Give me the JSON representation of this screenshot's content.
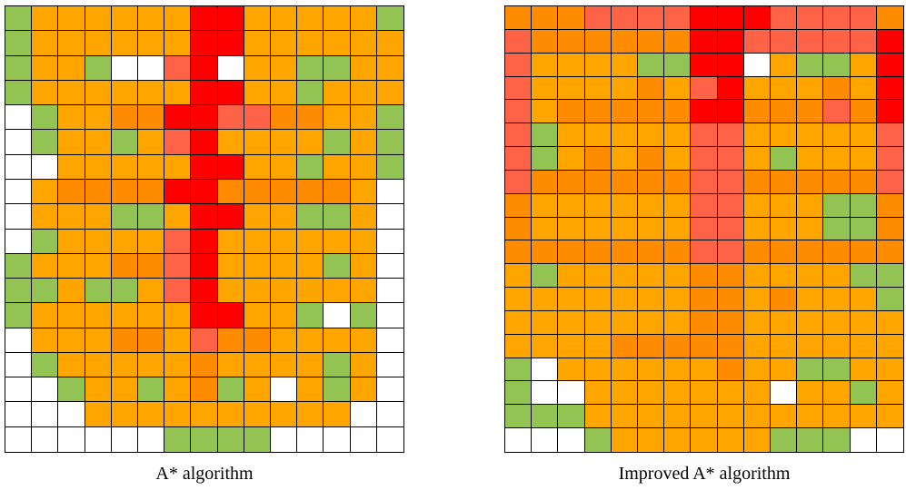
{
  "colors": {
    "W": "#FFFFFF",
    "G": "#92C353",
    "O": "#FFA500",
    "D": "#FF8C00",
    "S": "#FF6347",
    "R": "#FF0000"
  },
  "legend_codes": {
    "W": "white",
    "G": "green",
    "O": "orange",
    "D": "dark-orange",
    "S": "salmon-red",
    "R": "red"
  },
  "panels": [
    {
      "caption": "A* algorithm",
      "rows": [
        "GOOOOOORROOOOOG",
        "GOOOOOORROOOOOO",
        "GOOGWWSRWOOGGOO",
        "GOOOOOORROOGOOO",
        "WGOODDRRSSDDOOG",
        "WGOOGOSROOOOGOG",
        "WWOOOOORROOGOOG",
        "WODDDDRRDDDDDOW",
        "WOOOGGORROOGGOW",
        "WGOOOOSROOOOOOW",
        "GOOODDSROOOOGOW",
        "GGOGGOSROOOOOOW",
        "GOOOOOORROOGWGW",
        "WOOODDOSDDOOOOW",
        "WGOOOOODOOOOGOW",
        "WWGOOGODGOWOGOW",
        "WWWOOOOOOOOOOWW",
        "WWWWWWGGGGWWWWW"
      ]
    },
    {
      "caption": "Improved A* algorithm",
      "rows": [
        "DDDSSSSRRRSSSSD",
        "SDDDDDDRRSSSSSR",
        "SOOOOGGRRWOGGOR",
        "SOOOODOSROOODOR",
        "SODDDDDRRDDDSDR",
        "SGOOOOOSSOOOOOS",
        "SGODODOSSOGOOOS",
        "SDDDDDDSSDDDDDS",
        "DOOOOOOSSOOOGGD",
        "DOOOOOOSSOOOGGD",
        "DDDDDDDSSDDDDDD",
        "OGOOOOODDOOOOGG",
        "OOOOOOODDODOOOG",
        "OOOOOOODDOOOOOO",
        "OOOODDDDDOOOOOO",
        "GWOOOOOODOOGGOO",
        "GWWOOOOOOOWOOGO",
        "GGGOOOOOOOOOOOO",
        "WWWGOOOOOOGGGWW"
      ]
    }
  ]
}
